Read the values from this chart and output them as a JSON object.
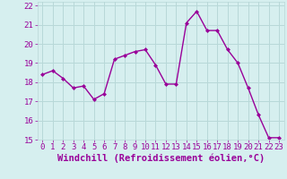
{
  "x": [
    0,
    1,
    2,
    3,
    4,
    5,
    6,
    7,
    8,
    9,
    10,
    11,
    12,
    13,
    14,
    15,
    16,
    17,
    18,
    19,
    20,
    21,
    22,
    23
  ],
  "y": [
    18.4,
    18.6,
    18.2,
    17.7,
    17.8,
    17.1,
    17.4,
    19.2,
    19.4,
    19.6,
    19.7,
    18.9,
    17.9,
    17.9,
    21.1,
    21.7,
    20.7,
    20.7,
    19.7,
    19.0,
    17.7,
    16.3,
    15.1,
    15.1
  ],
  "line_color": "#990099",
  "marker": "D",
  "marker_size": 2.0,
  "bg_color": "#d6efef",
  "grid_color": "#b8d8d8",
  "xlabel": "Windchill (Refroidissement éolien,°C)",
  "xlabel_color": "#990099",
  "ylim": [
    15,
    22
  ],
  "xlim": [
    -0.5,
    23.5
  ],
  "yticks": [
    15,
    16,
    17,
    18,
    19,
    20,
    21,
    22
  ],
  "xticks": [
    0,
    1,
    2,
    3,
    4,
    5,
    6,
    7,
    8,
    9,
    10,
    11,
    12,
    13,
    14,
    15,
    16,
    17,
    18,
    19,
    20,
    21,
    22,
    23
  ],
  "tick_label_color": "#990099",
  "tick_label_size": 6.5,
  "xlabel_size": 7.5,
  "linewidth": 1.0
}
